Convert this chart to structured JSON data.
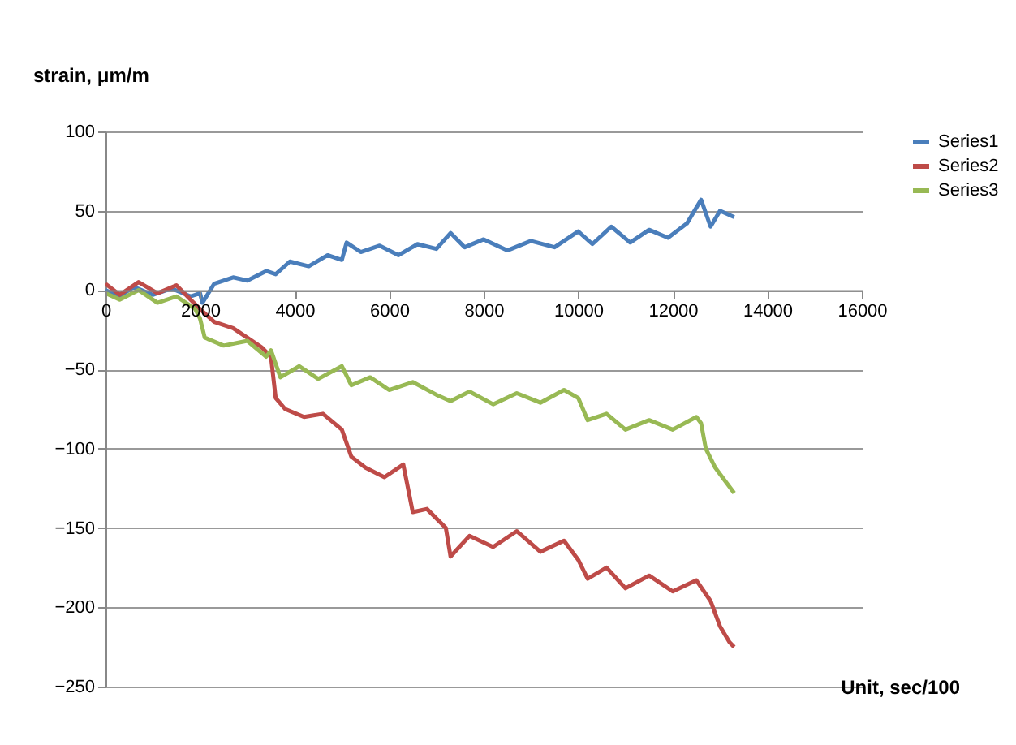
{
  "chart_data": {
    "type": "line",
    "xlabel": "Unit, sec/100",
    "ylabel": "strain, μm/m",
    "xlim": [
      0,
      16000
    ],
    "xticks": [
      0,
      2000,
      4000,
      6000,
      8000,
      10000,
      12000,
      14000,
      16000
    ],
    "ylim": [
      -250,
      100
    ],
    "yticks": [
      -250,
      -200,
      -150,
      -100,
      -50,
      0,
      50,
      100
    ],
    "grid": "y",
    "legend": "right",
    "line_style": "solid",
    "marker": "none",
    "series": [
      {
        "name": "Series1",
        "color": "#4a7ebb",
        "x": [
          0,
          300,
          600,
          1000,
          1400,
          1800,
          2000,
          2050,
          2300,
          2700,
          3000,
          3400,
          3600,
          3900,
          4300,
          4700,
          5000,
          5100,
          5400,
          5800,
          6200,
          6600,
          7000,
          7300,
          7600,
          8000,
          8500,
          9000,
          9500,
          10000,
          10300,
          10700,
          11100,
          11500,
          11900,
          12300,
          12600,
          12800,
          13000,
          13300
        ],
        "values": [
          0,
          -4,
          2,
          -3,
          1,
          -4,
          -2,
          -8,
          4,
          8,
          6,
          12,
          10,
          18,
          15,
          22,
          19,
          30,
          24,
          28,
          22,
          29,
          26,
          36,
          27,
          32,
          25,
          31,
          27,
          37,
          29,
          40,
          30,
          38,
          33,
          42,
          57,
          40,
          50,
          46
        ]
      },
      {
        "name": "Series2",
        "color": "#be4b48",
        "x": [
          0,
          300,
          700,
          1100,
          1500,
          1800,
          2000,
          2300,
          2700,
          3000,
          3300,
          3500,
          3600,
          3800,
          4200,
          4600,
          5000,
          5200,
          5500,
          5900,
          6300,
          6500,
          6800,
          7200,
          7300,
          7700,
          8200,
          8700,
          9200,
          9700,
          10000,
          10200,
          10600,
          11000,
          11500,
          12000,
          12500,
          12800,
          13000,
          13200,
          13300
        ],
        "values": [
          4,
          -3,
          5,
          -2,
          3,
          -6,
          -12,
          -20,
          -24,
          -30,
          -36,
          -42,
          -68,
          -75,
          -80,
          -78,
          -88,
          -105,
          -112,
          -118,
          -110,
          -140,
          -138,
          -150,
          -168,
          -155,
          -162,
          -152,
          -165,
          -158,
          -170,
          -182,
          -175,
          -188,
          -180,
          -190,
          -183,
          -196,
          -212,
          -222,
          -225
        ]
      },
      {
        "name": "Series3",
        "color": "#98b954",
        "x": [
          0,
          300,
          700,
          1100,
          1500,
          1900,
          2000,
          2100,
          2500,
          3000,
          3400,
          3500,
          3700,
          4100,
          4500,
          5000,
          5200,
          5600,
          6000,
          6500,
          7000,
          7300,
          7700,
          8200,
          8700,
          9200,
          9700,
          10000,
          10200,
          10600,
          11000,
          11500,
          12000,
          12500,
          12600,
          12700,
          12900,
          13100,
          13300
        ],
        "values": [
          -2,
          -6,
          0,
          -8,
          -4,
          -12,
          -18,
          -30,
          -35,
          -32,
          -42,
          -38,
          -55,
          -48,
          -56,
          -48,
          -60,
          -55,
          -63,
          -58,
          -66,
          -70,
          -64,
          -72,
          -65,
          -71,
          -63,
          -68,
          -82,
          -78,
          -88,
          -82,
          -88,
          -80,
          -84,
          -100,
          -112,
          -120,
          -128
        ]
      }
    ]
  }
}
